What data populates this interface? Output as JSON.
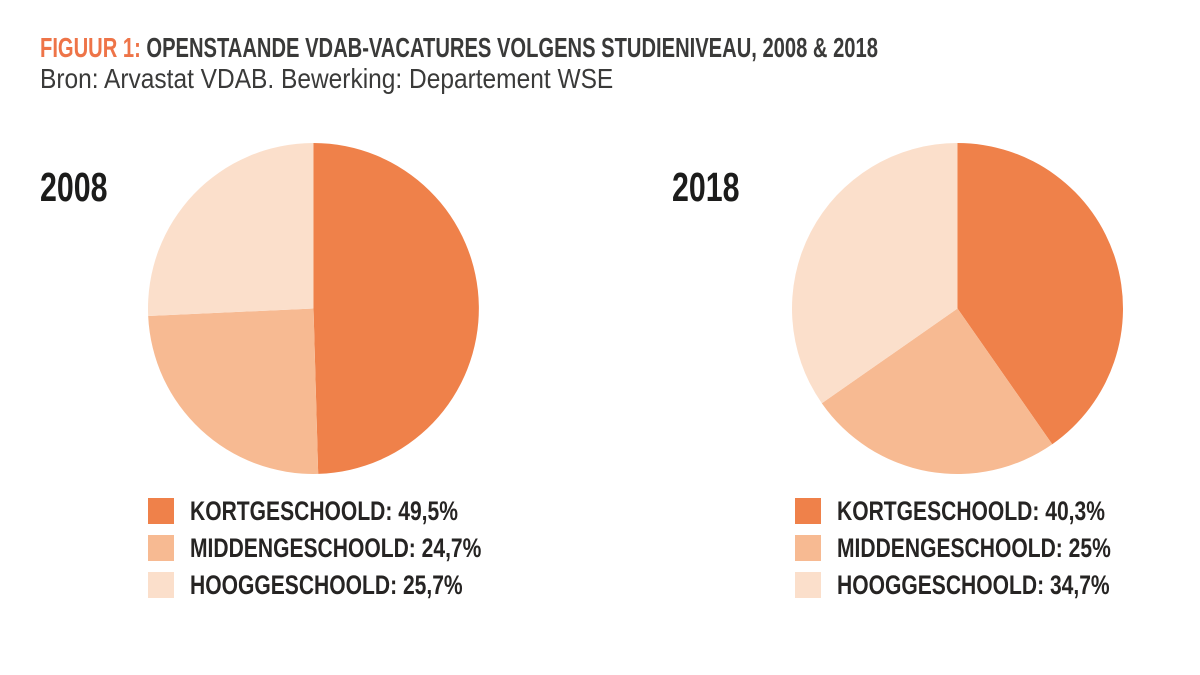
{
  "header": {
    "figure_label": "FIGUUR 1:",
    "title": "OPENSTAANDE VDAB-VACATURES VOLGENS STUDIENIVEAU, 2008 & 2018",
    "source": "Bron: Arvastat VDAB. Bewerking: Departement WSE",
    "accent_color": "#ee7448"
  },
  "colors": {
    "kortgeschoold": "#ef814a",
    "middengeschoold": "#f7ba92",
    "hooggeschoold": "#fbdfcb",
    "text_dark": "#3a3a39",
    "legend_text": "#262423"
  },
  "chart_data": [
    {
      "type": "pie",
      "title": "2008",
      "categories": [
        "KORTGESCHOOLD",
        "MIDDENGESCHOOLD",
        "HOOGGESCHOOLD"
      ],
      "values": [
        49.5,
        24.7,
        25.7
      ],
      "value_labels": [
        "49,5%",
        "24,7%",
        "25,7%"
      ],
      "legend": [
        "KORTGESCHOOLD: 49,5%",
        "MIDDENGESCHOOLD: 24,7%",
        "HOOGGESCHOOLD: 25,7%"
      ],
      "colors": [
        "#ef814a",
        "#f7ba92",
        "#fbdfcb"
      ],
      "start_angle_deg": 0,
      "direction": "clockwise",
      "legend_position": "bottom"
    },
    {
      "type": "pie",
      "title": "2018",
      "categories": [
        "KORTGESCHOOLD",
        "MIDDENGESCHOOLD",
        "HOOGGESCHOOLD"
      ],
      "values": [
        40.3,
        25,
        34.7
      ],
      "value_labels": [
        "40,3%",
        "25%",
        "34,7%"
      ],
      "legend": [
        "KORTGESCHOOLD: 40,3%",
        "MIDDENGESCHOOLD: 25%",
        "HOOGGESCHOOLD: 34,7%"
      ],
      "colors": [
        "#ef814a",
        "#f7ba92",
        "#fbdfcb"
      ],
      "start_angle_deg": 0,
      "direction": "clockwise",
      "legend_position": "bottom"
    }
  ]
}
